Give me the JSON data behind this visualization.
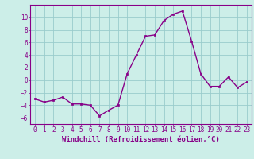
{
  "x": [
    0,
    1,
    2,
    3,
    4,
    5,
    6,
    7,
    8,
    9,
    10,
    11,
    12,
    13,
    14,
    15,
    16,
    17,
    18,
    19,
    20,
    21,
    22,
    23
  ],
  "y": [
    -3.0,
    -3.5,
    -3.2,
    -2.7,
    -3.8,
    -3.8,
    -4.0,
    -5.7,
    -4.8,
    -4.0,
    1.0,
    4.0,
    7.0,
    7.2,
    9.5,
    10.5,
    11.0,
    6.2,
    1.0,
    -1.0,
    -1.0,
    0.5,
    -1.2,
    -0.3
  ],
  "line_color": "#880088",
  "marker": "s",
  "marker_size": 2.0,
  "linewidth": 1.0,
  "bg_color": "#cceee8",
  "grid_color": "#99cccc",
  "xlabel": "Windchill (Refroidissement éolien,°C)",
  "xlabel_fontsize": 6.5,
  "ylim": [
    -7,
    12
  ],
  "xlim": [
    -0.5,
    23.5
  ],
  "yticks": [
    -6,
    -4,
    -2,
    0,
    2,
    4,
    6,
    8,
    10
  ],
  "xticks": [
    0,
    1,
    2,
    3,
    4,
    5,
    6,
    7,
    8,
    9,
    10,
    11,
    12,
    13,
    14,
    15,
    16,
    17,
    18,
    19,
    20,
    21,
    22,
    23
  ],
  "tick_fontsize": 5.5,
  "tick_color": "#880088",
  "axis_color": "#880088",
  "spine_color": "#880088"
}
